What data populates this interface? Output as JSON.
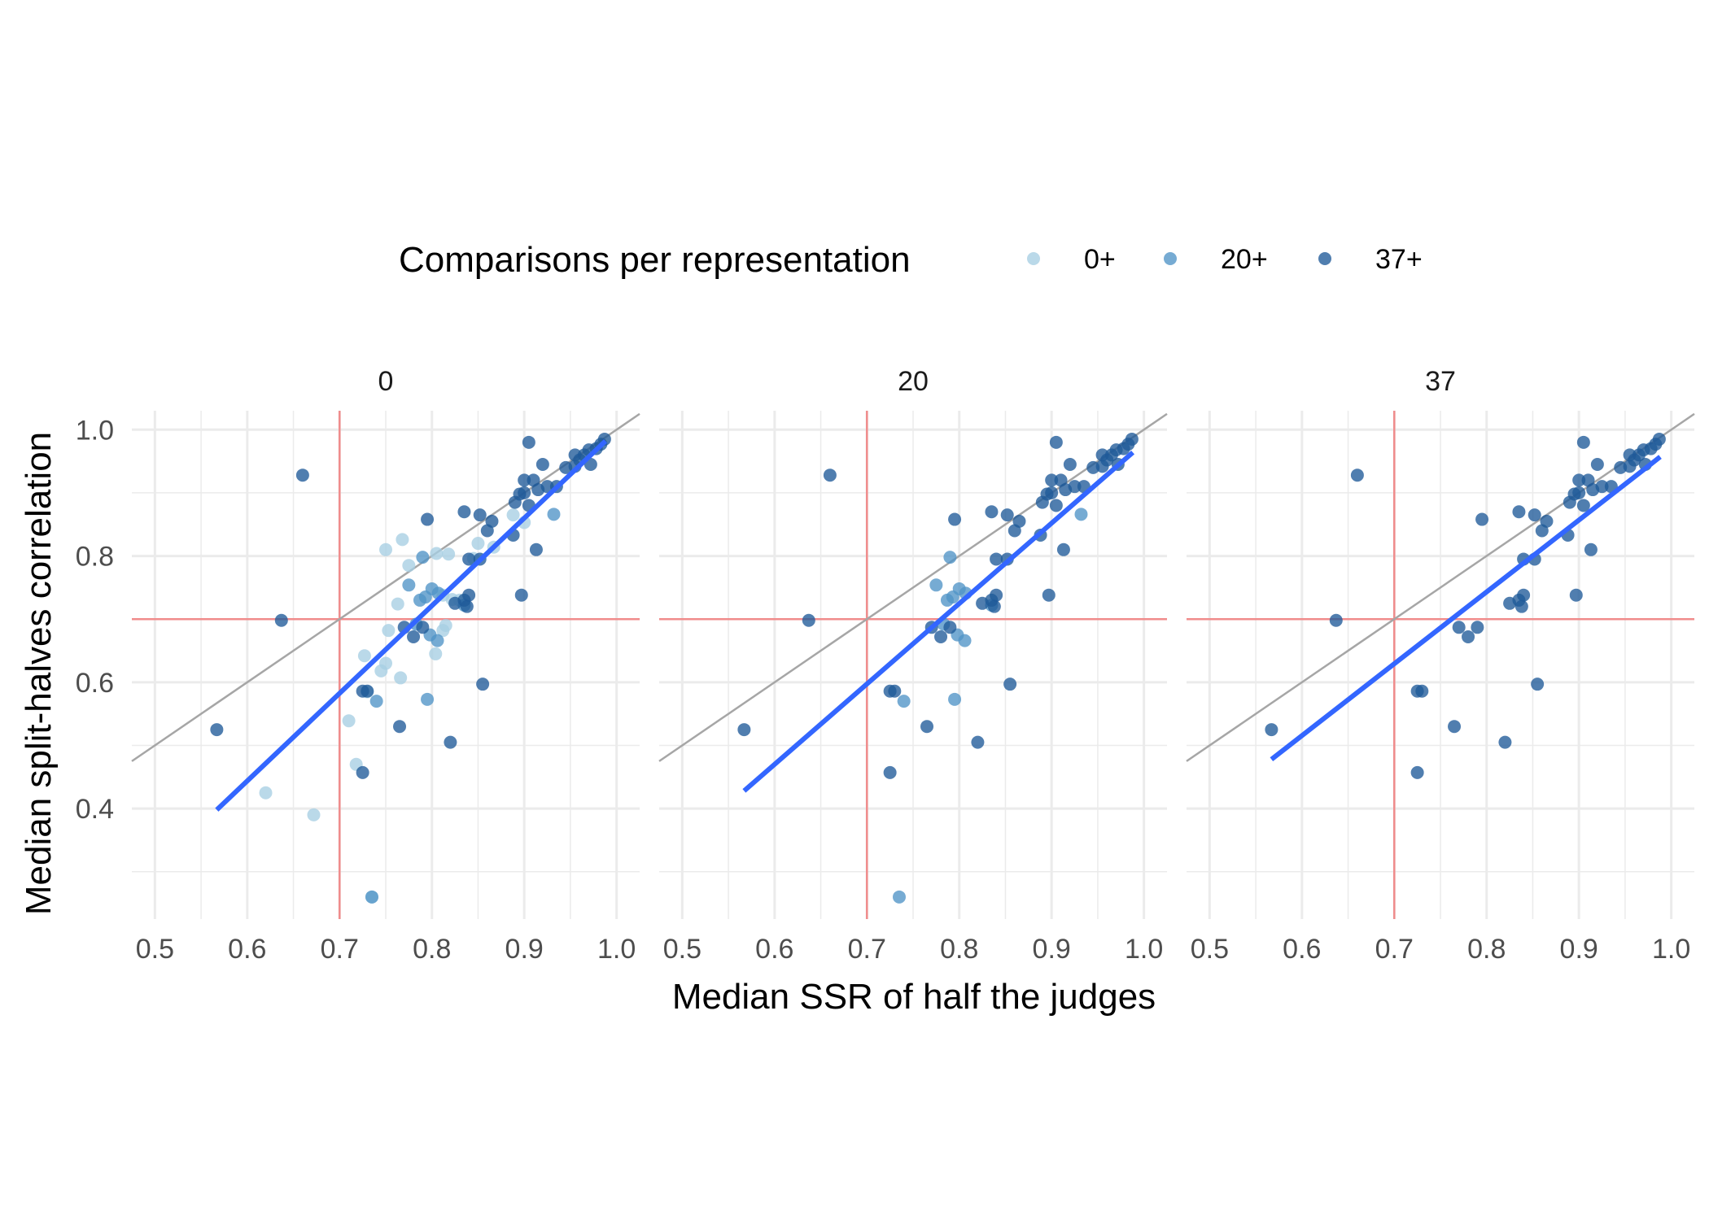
{
  "chart_data": {
    "type": "scatter",
    "title": "",
    "xlabel": "Median SSR of half the judges",
    "ylabel": "Median split-halves correlation",
    "xlim": [
      0.475,
      1.025
    ],
    "ylim": [
      0.225,
      1.03
    ],
    "x_ticks": [
      "0.5",
      "0.6",
      "0.7",
      "0.8",
      "0.9",
      "1.0"
    ],
    "y_ticks": [
      "0.4",
      "0.6",
      "0.8",
      "1.0"
    ],
    "grid": true,
    "legend_position": "top",
    "legend_title": "Comparisons per representation",
    "reference_lines": {
      "identity": true,
      "x_threshold": 0.7,
      "y_threshold": 0.7
    },
    "colors": {
      "0+": "#a6cee3",
      "20+": "#4f93c6",
      "37+": "#1f5a99",
      "fit": "#3366ff",
      "identity": "#a6a6a6",
      "threshold": "#f08c8c",
      "grid": "#ebebeb"
    },
    "groups": [
      {
        "name": "0+",
        "points": [
          [
            0.75,
            0.81
          ],
          [
            0.768,
            0.826
          ],
          [
            0.775,
            0.785
          ],
          [
            0.763,
            0.724
          ],
          [
            0.805,
            0.804
          ],
          [
            0.818,
            0.803
          ],
          [
            0.812,
            0.738
          ],
          [
            0.822,
            0.731
          ],
          [
            0.83,
            0.73
          ],
          [
            0.85,
            0.82
          ],
          [
            0.845,
            0.796
          ],
          [
            0.867,
            0.814
          ],
          [
            0.753,
            0.682
          ],
          [
            0.727,
            0.642
          ],
          [
            0.75,
            0.63
          ],
          [
            0.766,
            0.607
          ],
          [
            0.804,
            0.645
          ],
          [
            0.812,
            0.682
          ],
          [
            0.815,
            0.69
          ],
          [
            0.745,
            0.618
          ],
          [
            0.73,
            0.585
          ],
          [
            0.71,
            0.539
          ],
          [
            0.718,
            0.47
          ],
          [
            0.62,
            0.425
          ],
          [
            0.672,
            0.39
          ],
          [
            0.888,
            0.865
          ],
          [
            0.9,
            0.853
          ],
          [
            0.735,
            0.26
          ]
        ]
      },
      {
        "name": "20+",
        "points": [
          [
            0.79,
            0.798
          ],
          [
            0.775,
            0.754
          ],
          [
            0.787,
            0.73
          ],
          [
            0.8,
            0.748
          ],
          [
            0.793,
            0.735
          ],
          [
            0.807,
            0.741
          ],
          [
            0.783,
            0.692
          ],
          [
            0.798,
            0.675
          ],
          [
            0.806,
            0.666
          ],
          [
            0.835,
            0.722
          ],
          [
            0.74,
            0.57
          ],
          [
            0.795,
            0.573
          ],
          [
            0.932,
            0.866
          ],
          [
            0.735,
            0.26
          ]
        ]
      },
      {
        "name": "37+",
        "points": [
          [
            0.66,
            0.928
          ],
          [
            0.905,
            0.98
          ],
          [
            0.9,
            0.92
          ],
          [
            0.91,
            0.92
          ],
          [
            0.92,
            0.945
          ],
          [
            0.895,
            0.898
          ],
          [
            0.9,
            0.9
          ],
          [
            0.905,
            0.88
          ],
          [
            0.915,
            0.905
          ],
          [
            0.925,
            0.91
          ],
          [
            0.935,
            0.91
          ],
          [
            0.945,
            0.94
          ],
          [
            0.955,
            0.942
          ],
          [
            0.96,
            0.952
          ],
          [
            0.965,
            0.96
          ],
          [
            0.97,
            0.968
          ],
          [
            0.978,
            0.97
          ],
          [
            0.983,
            0.977
          ],
          [
            0.987,
            0.985
          ],
          [
            0.972,
            0.945
          ],
          [
            0.955,
            0.96
          ],
          [
            0.89,
            0.885
          ],
          [
            0.835,
            0.87
          ],
          [
            0.795,
            0.858
          ],
          [
            0.852,
            0.865
          ],
          [
            0.865,
            0.855
          ],
          [
            0.86,
            0.84
          ],
          [
            0.888,
            0.833
          ],
          [
            0.852,
            0.795
          ],
          [
            0.84,
            0.795
          ],
          [
            0.913,
            0.81
          ],
          [
            0.835,
            0.73
          ],
          [
            0.825,
            0.725
          ],
          [
            0.84,
            0.738
          ],
          [
            0.838,
            0.72
          ],
          [
            0.77,
            0.687
          ],
          [
            0.78,
            0.672
          ],
          [
            0.79,
            0.687
          ],
          [
            0.725,
            0.586
          ],
          [
            0.73,
            0.586
          ],
          [
            0.765,
            0.53
          ],
          [
            0.82,
            0.505
          ],
          [
            0.725,
            0.457
          ],
          [
            0.855,
            0.597
          ],
          [
            0.897,
            0.738
          ],
          [
            0.637,
            0.698
          ],
          [
            0.567,
            0.525
          ]
        ]
      }
    ],
    "panels": [
      {
        "title": "0",
        "groups": [
          "0+",
          "20+",
          "37+"
        ],
        "fit": [
          [
            0.567,
            0.398
          ],
          [
            0.988,
            0.982
          ]
        ]
      },
      {
        "title": "20",
        "groups": [
          "20+",
          "37+"
        ],
        "fit": [
          [
            0.567,
            0.428
          ],
          [
            0.988,
            0.964
          ]
        ]
      },
      {
        "title": "37",
        "groups": [
          "37+"
        ],
        "fit": [
          [
            0.567,
            0.478
          ],
          [
            0.988,
            0.957
          ]
        ]
      }
    ]
  }
}
